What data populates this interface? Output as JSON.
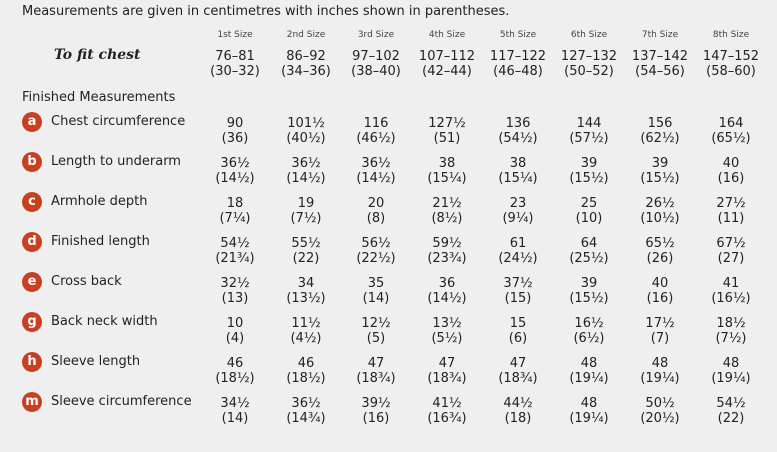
{
  "intro": "Measurements are given in centimetres with inches shown in parentheses.",
  "sizes": [
    "1st Size",
    "2nd Size",
    "3rd Size",
    "4th Size",
    "5th Size",
    "6th Size",
    "7th Size",
    "8th Size"
  ],
  "to_fit": {
    "label": "To fit chest",
    "values": [
      [
        "76–81",
        "(30–32)"
      ],
      [
        "86–92",
        "(34–36)"
      ],
      [
        "97–102",
        "(38–40)"
      ],
      [
        "107–112",
        "(42–44)"
      ],
      [
        "117–122",
        "(46–48)"
      ],
      [
        "127–132",
        "(50–52)"
      ],
      [
        "137–142",
        "(54–56)"
      ],
      [
        "147–152",
        "(58–60)"
      ]
    ]
  },
  "section_title": "Finished Measurements",
  "accent_color": "#c8401f",
  "rows": [
    {
      "letter": "a",
      "label": "Chest circumference",
      "values": [
        [
          "90",
          "(36)"
        ],
        [
          "101½",
          "(40½)"
        ],
        [
          "116",
          "(46½)"
        ],
        [
          "127½",
          "(51)"
        ],
        [
          "136",
          "(54½)"
        ],
        [
          "144",
          "(57½)"
        ],
        [
          "156",
          "(62½)"
        ],
        [
          "164",
          "(65½)"
        ]
      ]
    },
    {
      "letter": "b",
      "label": "Length to underarm",
      "values": [
        [
          "36½",
          "(14½)"
        ],
        [
          "36½",
          "(14½)"
        ],
        [
          "36½",
          "(14½)"
        ],
        [
          "38",
          "(15¼)"
        ],
        [
          "38",
          "(15¼)"
        ],
        [
          "39",
          "(15½)"
        ],
        [
          "39",
          "(15½)"
        ],
        [
          "40",
          "(16)"
        ]
      ]
    },
    {
      "letter": "c",
      "label": "Armhole depth",
      "values": [
        [
          "18",
          "(7¼)"
        ],
        [
          "19",
          "(7½)"
        ],
        [
          "20",
          "(8)"
        ],
        [
          "21½",
          "(8½)"
        ],
        [
          "23",
          "(9¼)"
        ],
        [
          "25",
          "(10)"
        ],
        [
          "26½",
          "(10½)"
        ],
        [
          "27½",
          "(11)"
        ]
      ]
    },
    {
      "letter": "d",
      "label": "Finished length",
      "values": [
        [
          "54½",
          "(21¾)"
        ],
        [
          "55½",
          "(22)"
        ],
        [
          "56½",
          "(22½)"
        ],
        [
          "59½",
          "(23¾)"
        ],
        [
          "61",
          "(24½)"
        ],
        [
          "64",
          "(25½)"
        ],
        [
          "65½",
          "(26)"
        ],
        [
          "67½",
          "(27)"
        ]
      ]
    },
    {
      "letter": "e",
      "label": "Cross back",
      "values": [
        [
          "32½",
          "(13)"
        ],
        [
          "34",
          "(13½)"
        ],
        [
          "35",
          "(14)"
        ],
        [
          "36",
          "(14½)"
        ],
        [
          "37½",
          "(15)"
        ],
        [
          "39",
          "(15½)"
        ],
        [
          "40",
          "(16)"
        ],
        [
          "41",
          "(16½)"
        ]
      ]
    },
    {
      "letter": "g",
      "label": "Back neck width",
      "values": [
        [
          "10",
          "(4)"
        ],
        [
          "11½",
          "(4½)"
        ],
        [
          "12½",
          "(5)"
        ],
        [
          "13½",
          "(5½)"
        ],
        [
          "15",
          "(6)"
        ],
        [
          "16½",
          "(6½)"
        ],
        [
          "17½",
          "(7)"
        ],
        [
          "18½",
          "(7½)"
        ]
      ]
    },
    {
      "letter": "h",
      "label": "Sleeve length",
      "values": [
        [
          "46",
          "(18½)"
        ],
        [
          "46",
          "(18½)"
        ],
        [
          "47",
          "(18¾)"
        ],
        [
          "47",
          "(18¾)"
        ],
        [
          "47",
          "(18¾)"
        ],
        [
          "48",
          "(19¼)"
        ],
        [
          "48",
          "(19¼)"
        ],
        [
          "48",
          "(19¼)"
        ]
      ]
    },
    {
      "letter": "m",
      "label": "Sleeve circumference",
      "values": [
        [
          "34½",
          "(14)"
        ],
        [
          "36½",
          "(14¾)"
        ],
        [
          "39½",
          "(16)"
        ],
        [
          "41½",
          "(16¾)"
        ],
        [
          "44½",
          "(18)"
        ],
        [
          "48",
          "(19¼)"
        ],
        [
          "50½",
          "(20½)"
        ],
        [
          "54½",
          "(22)"
        ]
      ]
    }
  ]
}
